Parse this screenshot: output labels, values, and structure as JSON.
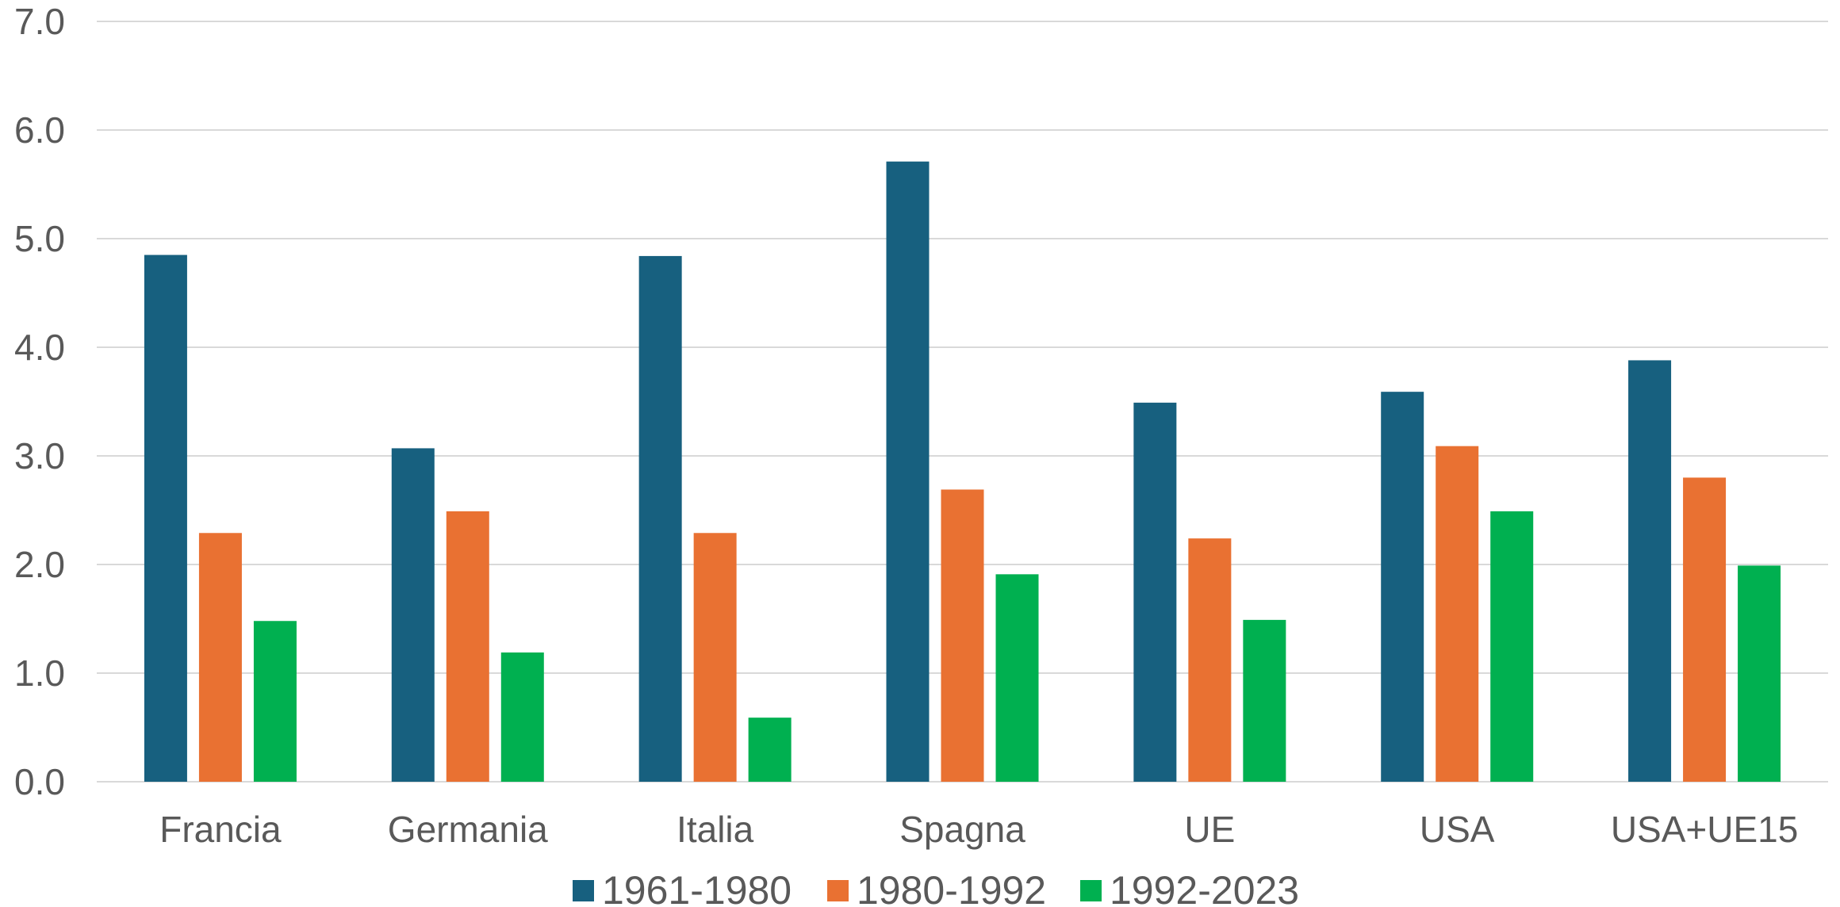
{
  "chart_data": {
    "type": "bar",
    "title": "",
    "xlabel": "",
    "ylabel": "",
    "ylim": [
      0,
      7
    ],
    "yticks": [
      "0.0",
      "1.0",
      "2.0",
      "3.0",
      "4.0",
      "5.0",
      "6.0",
      "7.0"
    ],
    "grid": true,
    "legend_position": "bottom",
    "categories": [
      "Francia",
      "Germania",
      "Italia",
      "Spagna",
      "UE",
      "USA",
      "USA+UE15"
    ],
    "series": [
      {
        "name": "1961-1980",
        "color": "#17607f",
        "values": [
          4.85,
          3.07,
          4.84,
          5.71,
          3.49,
          3.59,
          3.88
        ]
      },
      {
        "name": "1980-1992",
        "color": "#e97132",
        "values": [
          2.29,
          2.49,
          2.29,
          2.69,
          2.24,
          3.09,
          2.8
        ]
      },
      {
        "name": "1992-2023",
        "color": "#00b050",
        "values": [
          1.48,
          1.19,
          0.59,
          1.91,
          1.49,
          2.49,
          1.99
        ]
      }
    ]
  }
}
